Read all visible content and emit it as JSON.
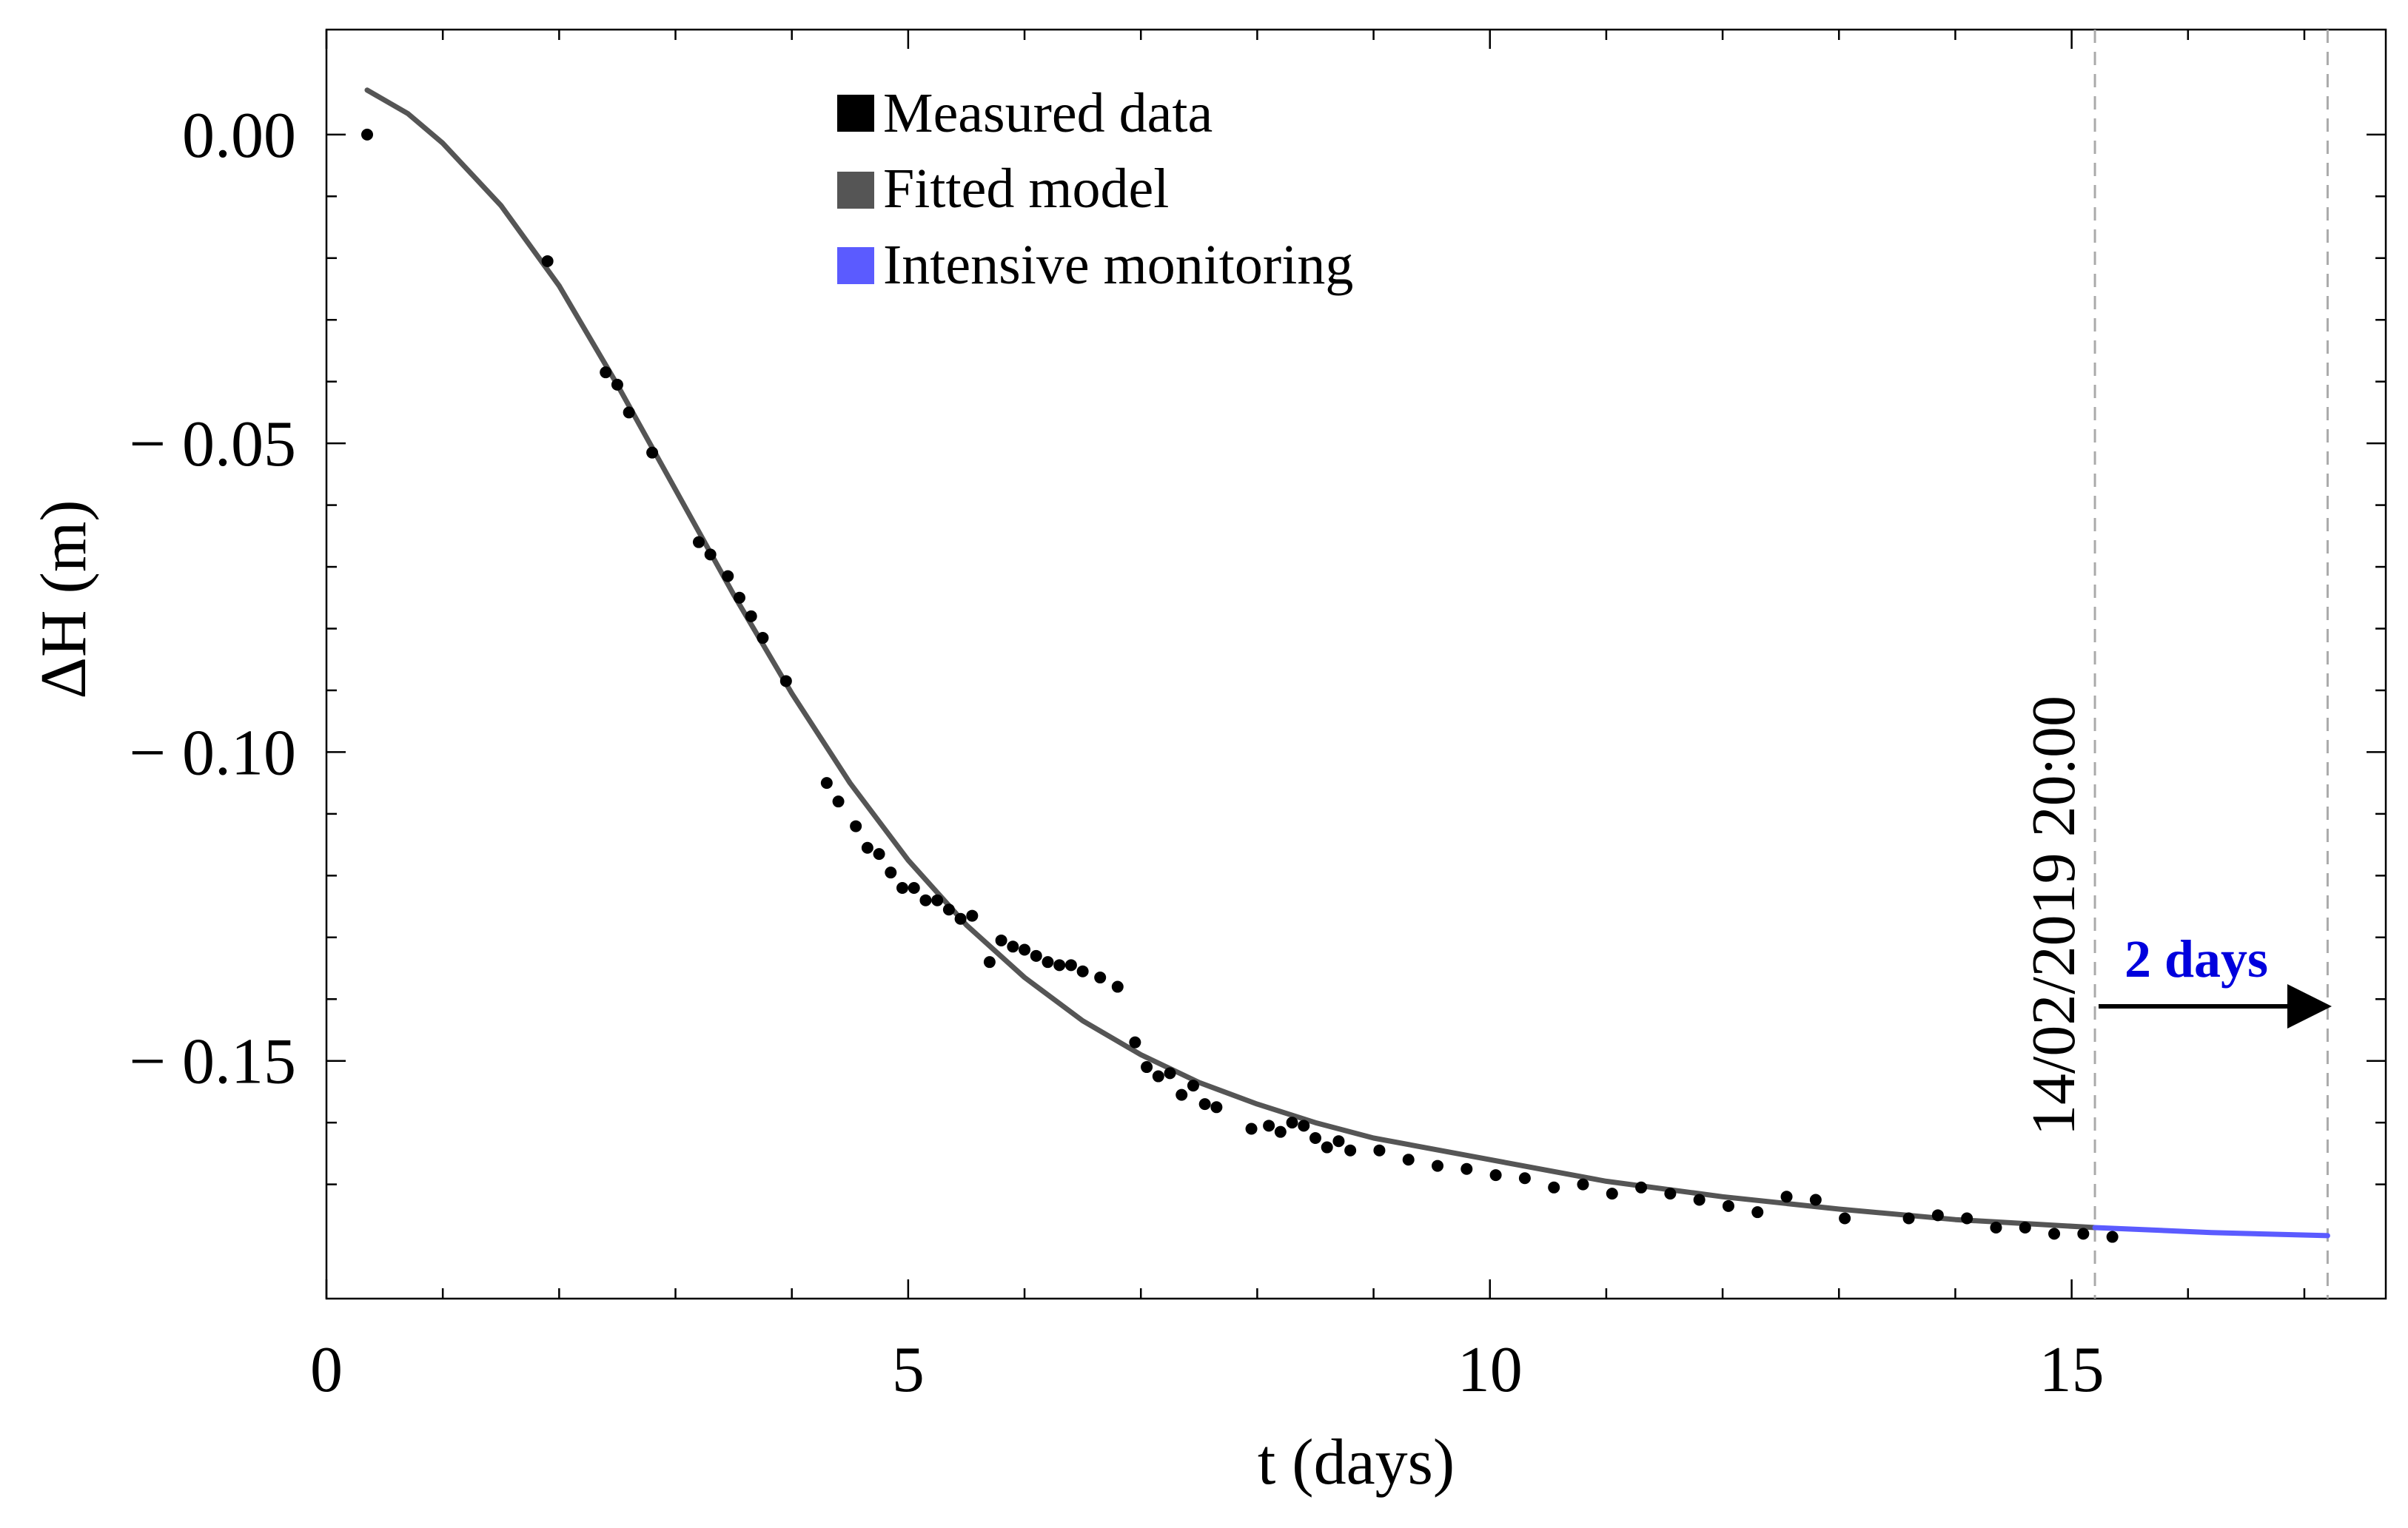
{
  "chart_data": {
    "type": "scatter",
    "xlabel": "t (days)",
    "ylabel": "ΔH (m)",
    "xlim": [
      0,
      17.7
    ],
    "ylim": [
      -0.1885,
      0.017
    ],
    "x_ticks": [
      0,
      5,
      10,
      15
    ],
    "x_tick_labels": [
      "0",
      "5",
      "10",
      "15"
    ],
    "y_ticks": [
      0.0,
      -0.05,
      -0.1,
      -0.15
    ],
    "y_tick_labels": [
      "0.00",
      "− 0.05",
      "− 0.10",
      "− 0.15"
    ],
    "legend": {
      "placement": "top-center",
      "entries": [
        {
          "label": "Measured data",
          "color": "#000000"
        },
        {
          "label": "Fitted model",
          "color": "#555555"
        },
        {
          "label": "Intensive monitoring",
          "color": "#5b5bff"
        }
      ]
    },
    "series": [
      {
        "name": "Measured data",
        "kind": "scatter",
        "color": "#000000",
        "points": [
          [
            0.35,
            0.0
          ],
          [
            1.9,
            -0.0205
          ],
          [
            2.4,
            -0.0385
          ],
          [
            2.5,
            -0.0405
          ],
          [
            2.6,
            -0.045
          ],
          [
            2.8,
            -0.0515
          ],
          [
            3.2,
            -0.066
          ],
          [
            3.3,
            -0.068
          ],
          [
            3.45,
            -0.0715
          ],
          [
            3.55,
            -0.075
          ],
          [
            3.65,
            -0.078
          ],
          [
            3.75,
            -0.0815
          ],
          [
            3.95,
            -0.0885
          ],
          [
            4.3,
            -0.105
          ],
          [
            4.4,
            -0.108
          ],
          [
            4.55,
            -0.112
          ],
          [
            4.65,
            -0.1155
          ],
          [
            4.75,
            -0.1165
          ],
          [
            4.85,
            -0.1195
          ],
          [
            4.95,
            -0.122
          ],
          [
            5.05,
            -0.122
          ],
          [
            5.15,
            -0.124
          ],
          [
            5.25,
            -0.124
          ],
          [
            5.35,
            -0.1255
          ],
          [
            5.45,
            -0.127
          ],
          [
            5.55,
            -0.1265
          ],
          [
            5.7,
            -0.134
          ],
          [
            5.8,
            -0.1305
          ],
          [
            5.9,
            -0.1315
          ],
          [
            6.0,
            -0.132
          ],
          [
            6.1,
            -0.133
          ],
          [
            6.2,
            -0.134
          ],
          [
            6.3,
            -0.1345
          ],
          [
            6.4,
            -0.1345
          ],
          [
            6.5,
            -0.1355
          ],
          [
            6.65,
            -0.1365
          ],
          [
            6.8,
            -0.138
          ],
          [
            6.95,
            -0.147
          ],
          [
            7.05,
            -0.151
          ],
          [
            7.15,
            -0.1525
          ],
          [
            7.25,
            -0.152
          ],
          [
            7.35,
            -0.1555
          ],
          [
            7.45,
            -0.154
          ],
          [
            7.55,
            -0.157
          ],
          [
            7.65,
            -0.1575
          ],
          [
            7.95,
            -0.161
          ],
          [
            8.1,
            -0.1605
          ],
          [
            8.2,
            -0.1615
          ],
          [
            8.3,
            -0.16
          ],
          [
            8.4,
            -0.1605
          ],
          [
            8.5,
            -0.1625
          ],
          [
            8.6,
            -0.164
          ],
          [
            8.7,
            -0.163
          ],
          [
            8.8,
            -0.1645
          ],
          [
            9.05,
            -0.1645
          ],
          [
            9.3,
            -0.166
          ],
          [
            9.55,
            -0.167
          ],
          [
            9.8,
            -0.1675
          ],
          [
            10.05,
            -0.1685
          ],
          [
            10.3,
            -0.169
          ],
          [
            10.55,
            -0.1705
          ],
          [
            10.8,
            -0.17
          ],
          [
            11.05,
            -0.1715
          ],
          [
            11.3,
            -0.1705
          ],
          [
            11.55,
            -0.1715
          ],
          [
            11.8,
            -0.1725
          ],
          [
            12.05,
            -0.1735
          ],
          [
            12.3,
            -0.1745
          ],
          [
            12.55,
            -0.172
          ],
          [
            12.8,
            -0.1725
          ],
          [
            13.05,
            -0.1755
          ],
          [
            13.6,
            -0.1755
          ],
          [
            13.85,
            -0.175
          ],
          [
            14.1,
            -0.1755
          ],
          [
            14.35,
            -0.177
          ],
          [
            14.6,
            -0.177
          ],
          [
            14.85,
            -0.178
          ],
          [
            15.1,
            -0.178
          ],
          [
            15.35,
            -0.1785
          ]
        ]
      },
      {
        "name": "Fitted model",
        "kind": "line",
        "color": "#555555",
        "points": [
          [
            0.35,
            0.0072
          ],
          [
            0.7,
            0.0034
          ],
          [
            1.0,
            -0.0014
          ],
          [
            1.5,
            -0.0115
          ],
          [
            2.0,
            -0.0245
          ],
          [
            2.5,
            -0.0405
          ],
          [
            3.0,
            -0.0575
          ],
          [
            3.5,
            -0.0745
          ],
          [
            4.0,
            -0.0905
          ],
          [
            4.5,
            -0.105
          ],
          [
            5.0,
            -0.1175
          ],
          [
            5.5,
            -0.128
          ],
          [
            6.0,
            -0.1365
          ],
          [
            6.5,
            -0.1435
          ],
          [
            7.0,
            -0.149
          ],
          [
            7.5,
            -0.1535
          ],
          [
            8.0,
            -0.157
          ],
          [
            8.5,
            -0.16
          ],
          [
            9.0,
            -0.1625
          ],
          [
            10.0,
            -0.166
          ],
          [
            11.0,
            -0.1695
          ],
          [
            12.0,
            -0.172
          ],
          [
            13.0,
            -0.174
          ],
          [
            14.0,
            -0.1757
          ],
          [
            15.2,
            -0.177
          ]
        ]
      },
      {
        "name": "Intensive monitoring",
        "kind": "line",
        "color": "#5b5bff",
        "points": [
          [
            15.2,
            -0.177
          ],
          [
            16.2,
            -0.1778
          ],
          [
            17.2,
            -0.1783
          ]
        ]
      }
    ],
    "annotations": {
      "start_marker_x": 15.2,
      "end_marker_x": 17.2,
      "date_label": "14/02/2019 20:00",
      "interval_label": "2 days",
      "interval_color": "#0000dd"
    }
  }
}
